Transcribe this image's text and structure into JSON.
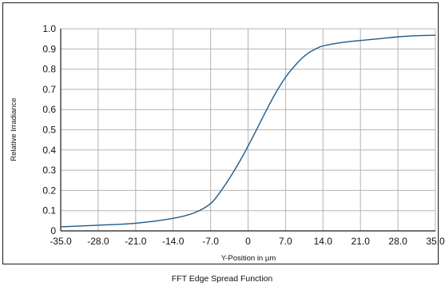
{
  "chart_data": {
    "type": "line",
    "title": "",
    "caption": "FFT Edge Spread Function",
    "xlabel": "Y-Position in µm",
    "ylabel": "Relative Irradiance",
    "xlim": [
      -35,
      35
    ],
    "ylim": [
      0,
      1
    ],
    "x_ticks": [
      "-35.0",
      "-28.0",
      "-21.0",
      "-14.0",
      "-7.0",
      "0",
      "7.0",
      "14.0",
      "21.0",
      "28.0",
      "35.0"
    ],
    "y_ticks": [
      "0",
      "0.1",
      "0.2",
      "0.3",
      "0.4",
      "0.5",
      "0.6",
      "0.7",
      "0.8",
      "0.9",
      "1.0"
    ],
    "grid": true,
    "legend": "none",
    "series": [
      {
        "color": "#1f5a8a",
        "x": [
          -35,
          -28,
          -21,
          -14,
          -10,
          -7,
          -5,
          -3,
          -1,
          0,
          1,
          3,
          5,
          7,
          9,
          11,
          13,
          14,
          17,
          21,
          25,
          28,
          31,
          35
        ],
        "y": [
          0.02,
          0.028,
          0.038,
          0.062,
          0.09,
          0.135,
          0.2,
          0.28,
          0.37,
          0.42,
          0.47,
          0.575,
          0.675,
          0.76,
          0.825,
          0.875,
          0.905,
          0.915,
          0.93,
          0.942,
          0.952,
          0.96,
          0.965,
          0.968
        ]
      }
    ]
  },
  "colors": {
    "grid": "#b4b4b4",
    "axis": "#1a1a1a",
    "frame": "#1a1a1a"
  }
}
